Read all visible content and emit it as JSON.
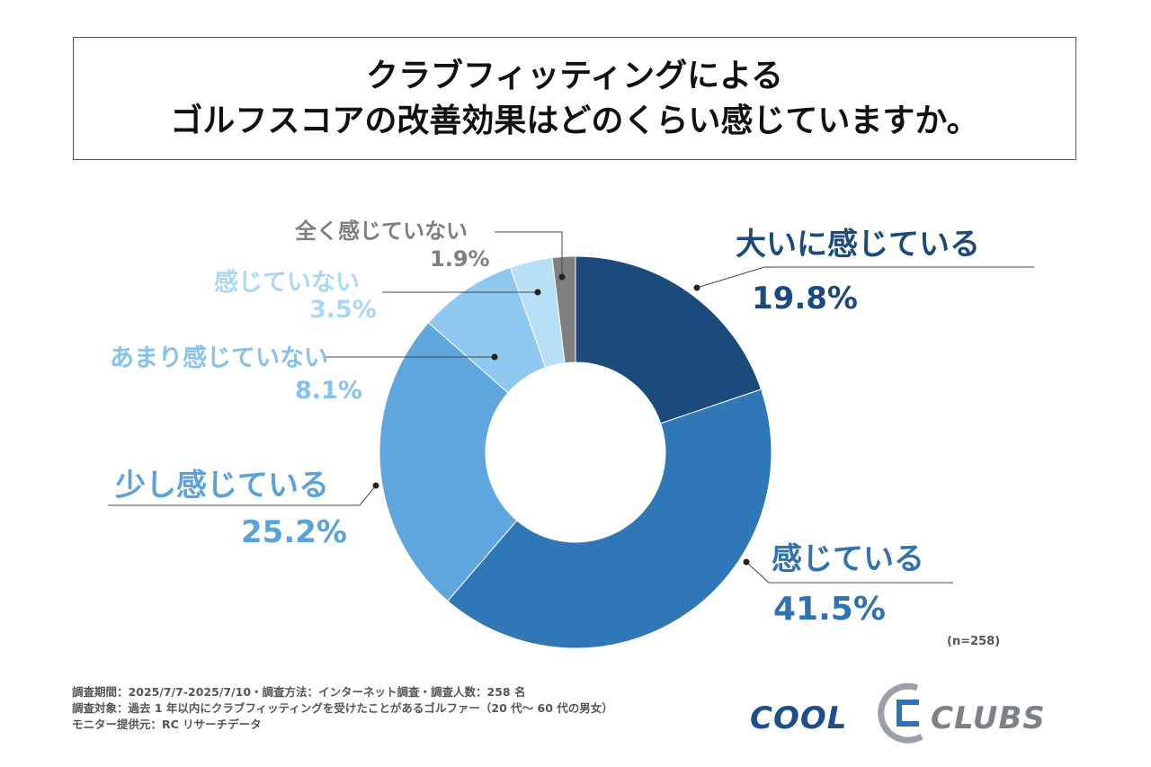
{
  "title": {
    "line1": "クラブフィッティングによる",
    "line2": "ゴルフスコアの改善効果はどのくらい感じていますか。"
  },
  "chart_data": {
    "type": "pie",
    "donut": true,
    "title": "クラブフィッティングによるゴルフスコアの改善効果はどのくらい感じていますか。",
    "categories": [
      "大いに感じている",
      "感じている",
      "少し感じている",
      "あまり感じていない",
      "感じていない",
      "全く感じていない"
    ],
    "values": [
      19.8,
      41.5,
      25.2,
      8.1,
      3.5,
      1.9
    ],
    "value_labels": [
      "19.8%",
      "41.5%",
      "25.2%",
      "8.1%",
      "3.5%",
      "1.9%"
    ],
    "colors": [
      "#1b4a7d",
      "#2f77b6",
      "#5fa6df",
      "#8fc8f0",
      "#b7e0f7",
      "#7f7f7f"
    ],
    "label_colors": [
      "#1b4a7d",
      "#2f72b3",
      "#5aa2dc",
      "#86c2ec",
      "#aad8f3",
      "#7f7f7f"
    ],
    "n": "(n=258)"
  },
  "footer": {
    "line1": "調査期間：2025/7/7-2025/7/10・調査方法：インターネット調査・調査人数：258 名",
    "line2": "調査対象：過去 1 年以内にクラブフィッティングを受けたことがあるゴルファー（20 代～ 60 代の男女）",
    "line3": "モニター提供元：RC リサーチデータ"
  },
  "logo": {
    "left": "COOL",
    "right": "CLUBS"
  }
}
